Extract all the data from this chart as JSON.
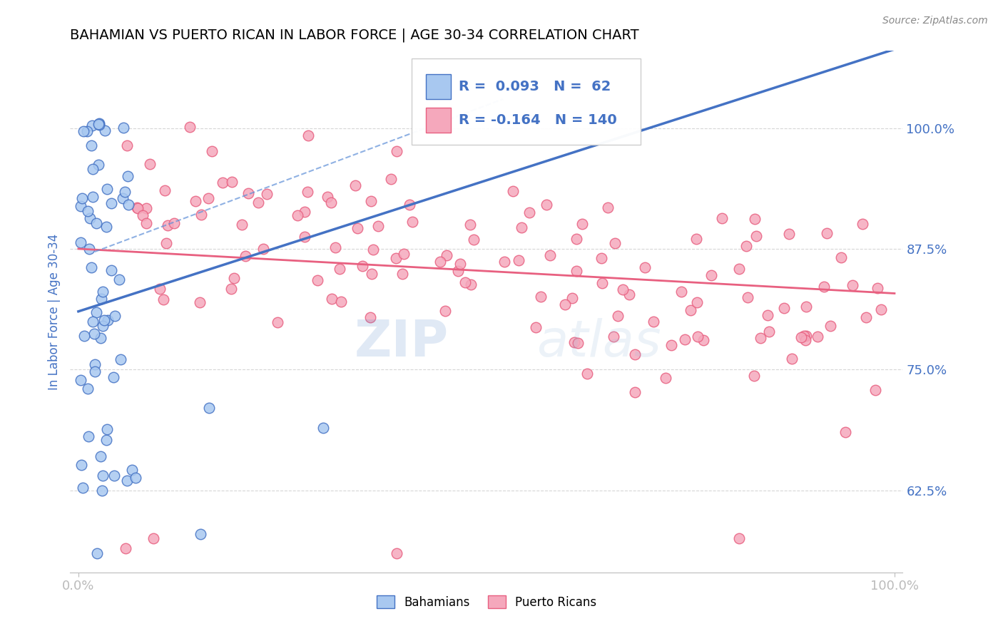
{
  "title": "BAHAMIAN VS PUERTO RICAN IN LABOR FORCE | AGE 30-34 CORRELATION CHART",
  "source_text": "Source: ZipAtlas.com",
  "ylabel": "In Labor Force | Age 30-34",
  "y_ticks": [
    0.625,
    0.75,
    0.875,
    1.0
  ],
  "y_tick_labels": [
    "62.5%",
    "75.0%",
    "87.5%",
    "100.0%"
  ],
  "xlim": [
    -0.01,
    1.01
  ],
  "ylim": [
    0.54,
    1.08
  ],
  "bahamian_color": "#A8C8F0",
  "puerto_rican_color": "#F5A8BC",
  "blue_line_color": "#4472C4",
  "blue_line_color2": "#6090D8",
  "pink_line_color": "#E86080",
  "R_bahamian": 0.093,
  "N_bahamian": 62,
  "R_puerto_rican": -0.164,
  "N_puerto_rican": 140,
  "legend_label_bahamian": "Bahamians",
  "legend_label_puerto_rican": "Puerto Ricans",
  "watermark_zip": "ZIP",
  "watermark_atlas": "atlas",
  "background_color": "#FFFFFF",
  "grid_color": "#CCCCCC",
  "title_color": "#000000",
  "axis_label_color": "#4472C4",
  "tick_label_color": "#4472C4",
  "source_color": "#888888"
}
